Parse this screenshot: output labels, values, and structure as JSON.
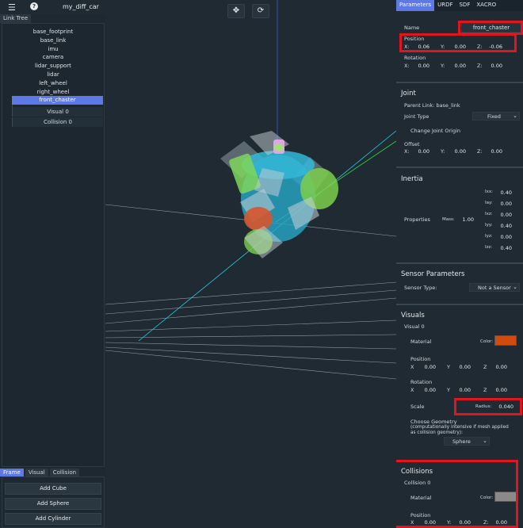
{
  "app": {
    "title": "my_diff_car",
    "menu_icon": "hamburger-icon",
    "help_icon": "help-icon"
  },
  "left_tabs": [
    "Link Tree"
  ],
  "tree": [
    "base_footprint",
    "base_link",
    "imu",
    "camera",
    "lidar_support",
    "lidar",
    "left_wheel",
    "right_wheel",
    "front_chaster"
  ],
  "tree_children": [
    "Visual 0",
    "Collision 0"
  ],
  "bottom_tabs": [
    "Frame",
    "Visual",
    "Collision"
  ],
  "add_buttons": [
    "Add Cube",
    "Add Sphere",
    "Add Cylinder"
  ],
  "right_tabs": [
    "Parameters",
    "URDF",
    "SDF",
    "XACRO"
  ],
  "name": {
    "label": "Name",
    "value": "front_chaster"
  },
  "position": {
    "label": "Position",
    "x": "0.06",
    "y": "0.00",
    "z": "-0.06"
  },
  "rotation": {
    "label": "Rotation",
    "x": "0.00",
    "y": "0.00",
    "z": "0.00"
  },
  "axes": {
    "x": "X:",
    "y": "Y:",
    "z": "Z:"
  },
  "joint": {
    "title": "Joint",
    "parent": "Parent Link: base_link",
    "type_label": "Joint Type",
    "type_value": "Fixed",
    "change_origin": "Change Joint Origin",
    "offset_label": "Offset",
    "x": "0.00",
    "y": "0.00",
    "z": "0.00"
  },
  "inertia": {
    "title": "Inertia",
    "properties": "Properties",
    "mass_label": "Mass:",
    "mass": "1.00",
    "rows": [
      {
        "k": "Ixx:",
        "v": "0.40"
      },
      {
        "k": "Iay:",
        "v": "0.00"
      },
      {
        "k": "Ixz:",
        "v": "0.00"
      },
      {
        "k": "Iyy:",
        "v": "0.40"
      },
      {
        "k": "Iyz:",
        "v": "0.00"
      },
      {
        "k": "Izz:",
        "v": "0.40"
      }
    ]
  },
  "sensor": {
    "title": "Sensor Parameters",
    "type_label": "Sensor Type:",
    "type_value": "Not a Sensor"
  },
  "visuals": {
    "title": "Visuals",
    "sub": "Visual 0",
    "material": "Material",
    "color_label": "Color:",
    "color": "#d24b0e",
    "position_label": "Position",
    "px": "0.00",
    "py": "0.00",
    "pz": "0.00",
    "rotation_label": "Rotation",
    "rx": "0.00",
    "ry": "0.00",
    "rz": "0.00",
    "scale_label": "Scale",
    "radius_label": "Radius:",
    "radius": "0.040",
    "geometry_label": "Choose Geometry",
    "geometry_note": "(computationally intensive if mesh applied as collision geometry):",
    "geometry_value": "Sphere"
  },
  "collisions": {
    "title": "Collisions",
    "sub": "Collision 0",
    "material": "Material",
    "color_label": "Color:",
    "color": "#8a8a8a",
    "position_label": "Position",
    "px": "0.00",
    "py": "0.00",
    "pz": "0.00"
  },
  "axis_short": {
    "x": "X",
    "y": "Y",
    "z": "Z"
  },
  "colors": {
    "accent": "#5e79e6",
    "highlight": "#e2141e"
  }
}
